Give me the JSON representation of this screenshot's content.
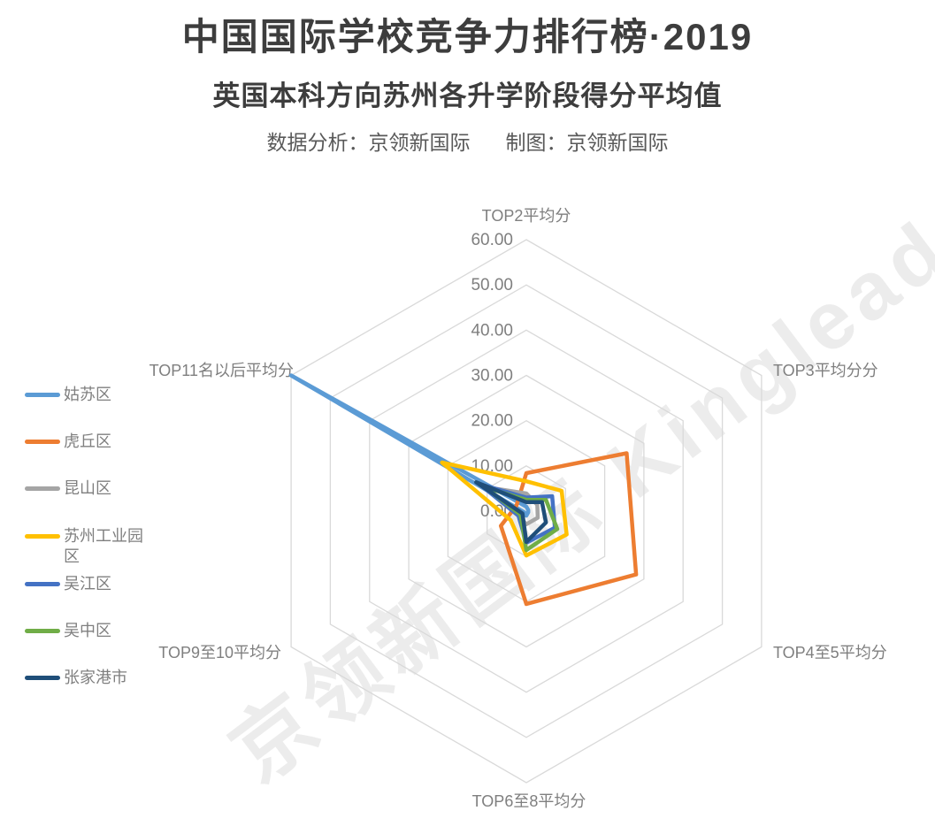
{
  "header": {
    "title": "中国国际学校竞争力排行榜·2019",
    "subtitle": "英国本科方向苏州各升学阶段得分平均值",
    "credit_left": "数据分析：京领新国际",
    "credit_right": "制图：京领新国际"
  },
  "watermark": "京领新国际 Kinglead",
  "chart_data": {
    "type": "radar",
    "categories": [
      "TOP2平均分",
      "TOP3平均分分",
      "TOP4至5平均分",
      "TOP6至8平均分",
      "TOP9至10平均分",
      "TOP11名以后平均分"
    ],
    "axis": {
      "min": 0,
      "max": 60,
      "step": 10,
      "tick_labels": [
        "60.00",
        "50.00",
        "40.00",
        "30.00",
        "20.00",
        "10.00",
        "0.00"
      ],
      "grid_color": "#d9d9d9",
      "label_color": "#7f7f7f"
    },
    "grid": true,
    "legend_position": "left",
    "series": [
      {
        "name": "姑苏区",
        "color": "#5B9BD5",
        "values": [
          1.0,
          0.5,
          0.5,
          1.0,
          0.5,
          60.0
        ]
      },
      {
        "name": "虎丘区",
        "color": "#ED7D31",
        "values": [
          8.4,
          25.6,
          28.0,
          20.5,
          6.5,
          2.5
        ]
      },
      {
        "name": "昆山区",
        "color": "#A5A5A5",
        "values": [
          3.9,
          2.8,
          2.9,
          2.9,
          2.0,
          10.7
        ]
      },
      {
        "name": "苏州工业园区",
        "color": "#FFC000",
        "values": [
          6.6,
          9.0,
          10.3,
          9.8,
          4.0,
          21.5
        ]
      },
      {
        "name": "吴江区",
        "color": "#4472C4",
        "values": [
          3.0,
          6.6,
          7.3,
          7.0,
          2.0,
          12.0
        ]
      },
      {
        "name": "吴中区",
        "color": "#70AD47",
        "values": [
          2.5,
          5.0,
          7.9,
          8.6,
          1.5,
          10.5
        ]
      },
      {
        "name": "张家港市",
        "color": "#1F4E79",
        "values": [
          2.0,
          4.0,
          5.0,
          6.8,
          1.0,
          12.8
        ]
      }
    ]
  }
}
